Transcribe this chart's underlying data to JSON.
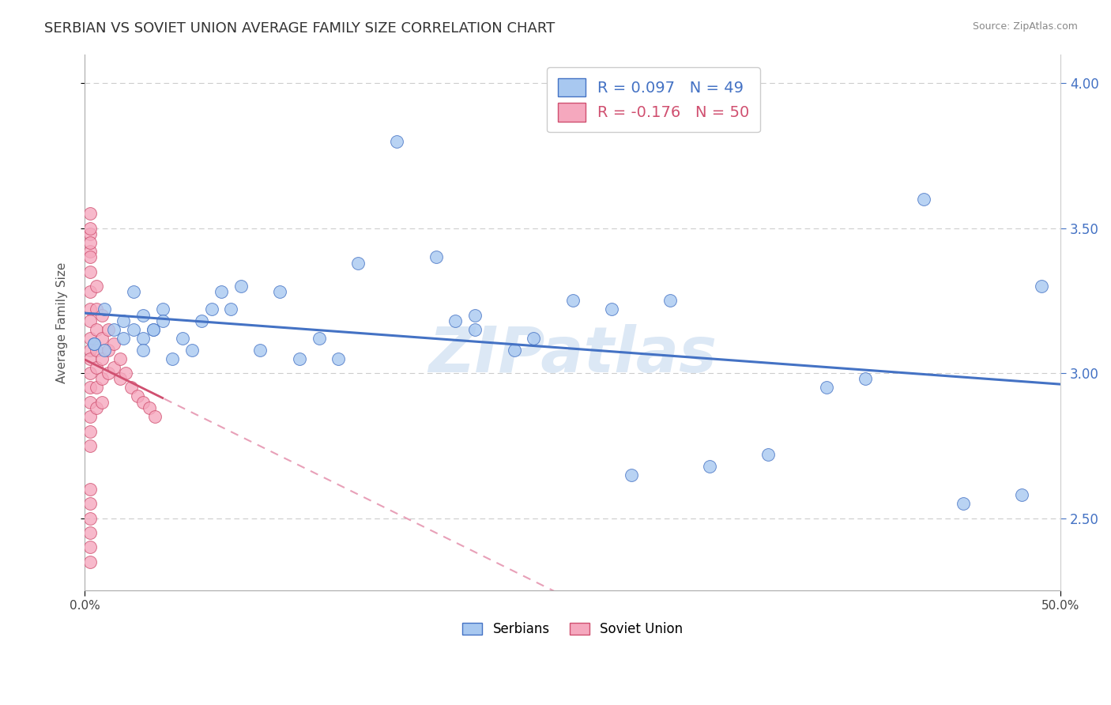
{
  "title": "SERBIAN VS SOVIET UNION AVERAGE FAMILY SIZE CORRELATION CHART",
  "source_text": "Source: ZipAtlas.com",
  "ylabel": "Average Family Size",
  "xlim": [
    0.0,
    0.5
  ],
  "ylim": [
    2.25,
    4.1
  ],
  "yticks_right": [
    2.5,
    3.0,
    3.5,
    4.0
  ],
  "ytick_labels_right": [
    "2.50",
    "3.00",
    "3.50",
    "4.00"
  ],
  "serbian_color": "#a8c8f0",
  "soviet_color": "#f5a8be",
  "serbian_line_color": "#4472c4",
  "soviet_line_color": "#d05070",
  "soviet_line_dashed_color": "#e8a0b8",
  "serbian_R": 0.097,
  "serbian_N": 49,
  "soviet_R": -0.176,
  "soviet_N": 50,
  "legend_label_serbian": "Serbians",
  "legend_label_soviet": "Soviet Union",
  "watermark": "ZIPatlas",
  "background_color": "#ffffff",
  "grid_color": "#cccccc",
  "title_fontsize": 13,
  "axis_label_fontsize": 11,
  "serbian_points_x": [
    0.005,
    0.01,
    0.015,
    0.02,
    0.025,
    0.03,
    0.03,
    0.035,
    0.04,
    0.04,
    0.045,
    0.05,
    0.055,
    0.06,
    0.065,
    0.07,
    0.075,
    0.08,
    0.09,
    0.1,
    0.11,
    0.12,
    0.13,
    0.14,
    0.16,
    0.18,
    0.19,
    0.2,
    0.22,
    0.23,
    0.25,
    0.27,
    0.28,
    0.3,
    0.32,
    0.35,
    0.38,
    0.4,
    0.43,
    0.45,
    0.48,
    0.49,
    0.005,
    0.01,
    0.02,
    0.025,
    0.03,
    0.035,
    0.2
  ],
  "serbian_points_y": [
    3.1,
    3.22,
    3.15,
    3.18,
    3.28,
    3.2,
    3.12,
    3.15,
    3.22,
    3.18,
    3.05,
    3.12,
    3.08,
    3.18,
    3.22,
    3.28,
    3.22,
    3.3,
    3.08,
    3.28,
    3.05,
    3.12,
    3.05,
    3.38,
    3.8,
    3.4,
    3.18,
    3.2,
    3.08,
    3.12,
    3.25,
    3.22,
    2.65,
    3.25,
    2.68,
    2.72,
    2.95,
    2.98,
    3.6,
    2.55,
    2.58,
    3.3,
    3.1,
    3.08,
    3.12,
    3.15,
    3.08,
    3.15,
    3.15
  ],
  "soviet_points_x": [
    0.003,
    0.003,
    0.003,
    0.003,
    0.003,
    0.003,
    0.003,
    0.003,
    0.003,
    0.003,
    0.003,
    0.003,
    0.003,
    0.003,
    0.003,
    0.006,
    0.006,
    0.006,
    0.006,
    0.006,
    0.006,
    0.006,
    0.009,
    0.009,
    0.009,
    0.009,
    0.009,
    0.012,
    0.012,
    0.012,
    0.015,
    0.015,
    0.018,
    0.018,
    0.021,
    0.024,
    0.027,
    0.03,
    0.033,
    0.036,
    0.003,
    0.003,
    0.003,
    0.003,
    0.003,
    0.003,
    0.003,
    0.003,
    0.003,
    0.003
  ],
  "soviet_points_y": [
    3.48,
    3.42,
    3.35,
    3.28,
    3.22,
    3.18,
    3.12,
    3.08,
    3.05,
    3.0,
    2.95,
    2.9,
    2.85,
    2.8,
    2.75,
    3.3,
    3.22,
    3.15,
    3.08,
    3.02,
    2.95,
    2.88,
    3.2,
    3.12,
    3.05,
    2.98,
    2.9,
    3.15,
    3.08,
    3.0,
    3.1,
    3.02,
    3.05,
    2.98,
    3.0,
    2.95,
    2.92,
    2.9,
    2.88,
    2.85,
    3.55,
    3.5,
    3.45,
    3.4,
    2.6,
    2.55,
    2.5,
    2.45,
    2.4,
    2.35
  ]
}
